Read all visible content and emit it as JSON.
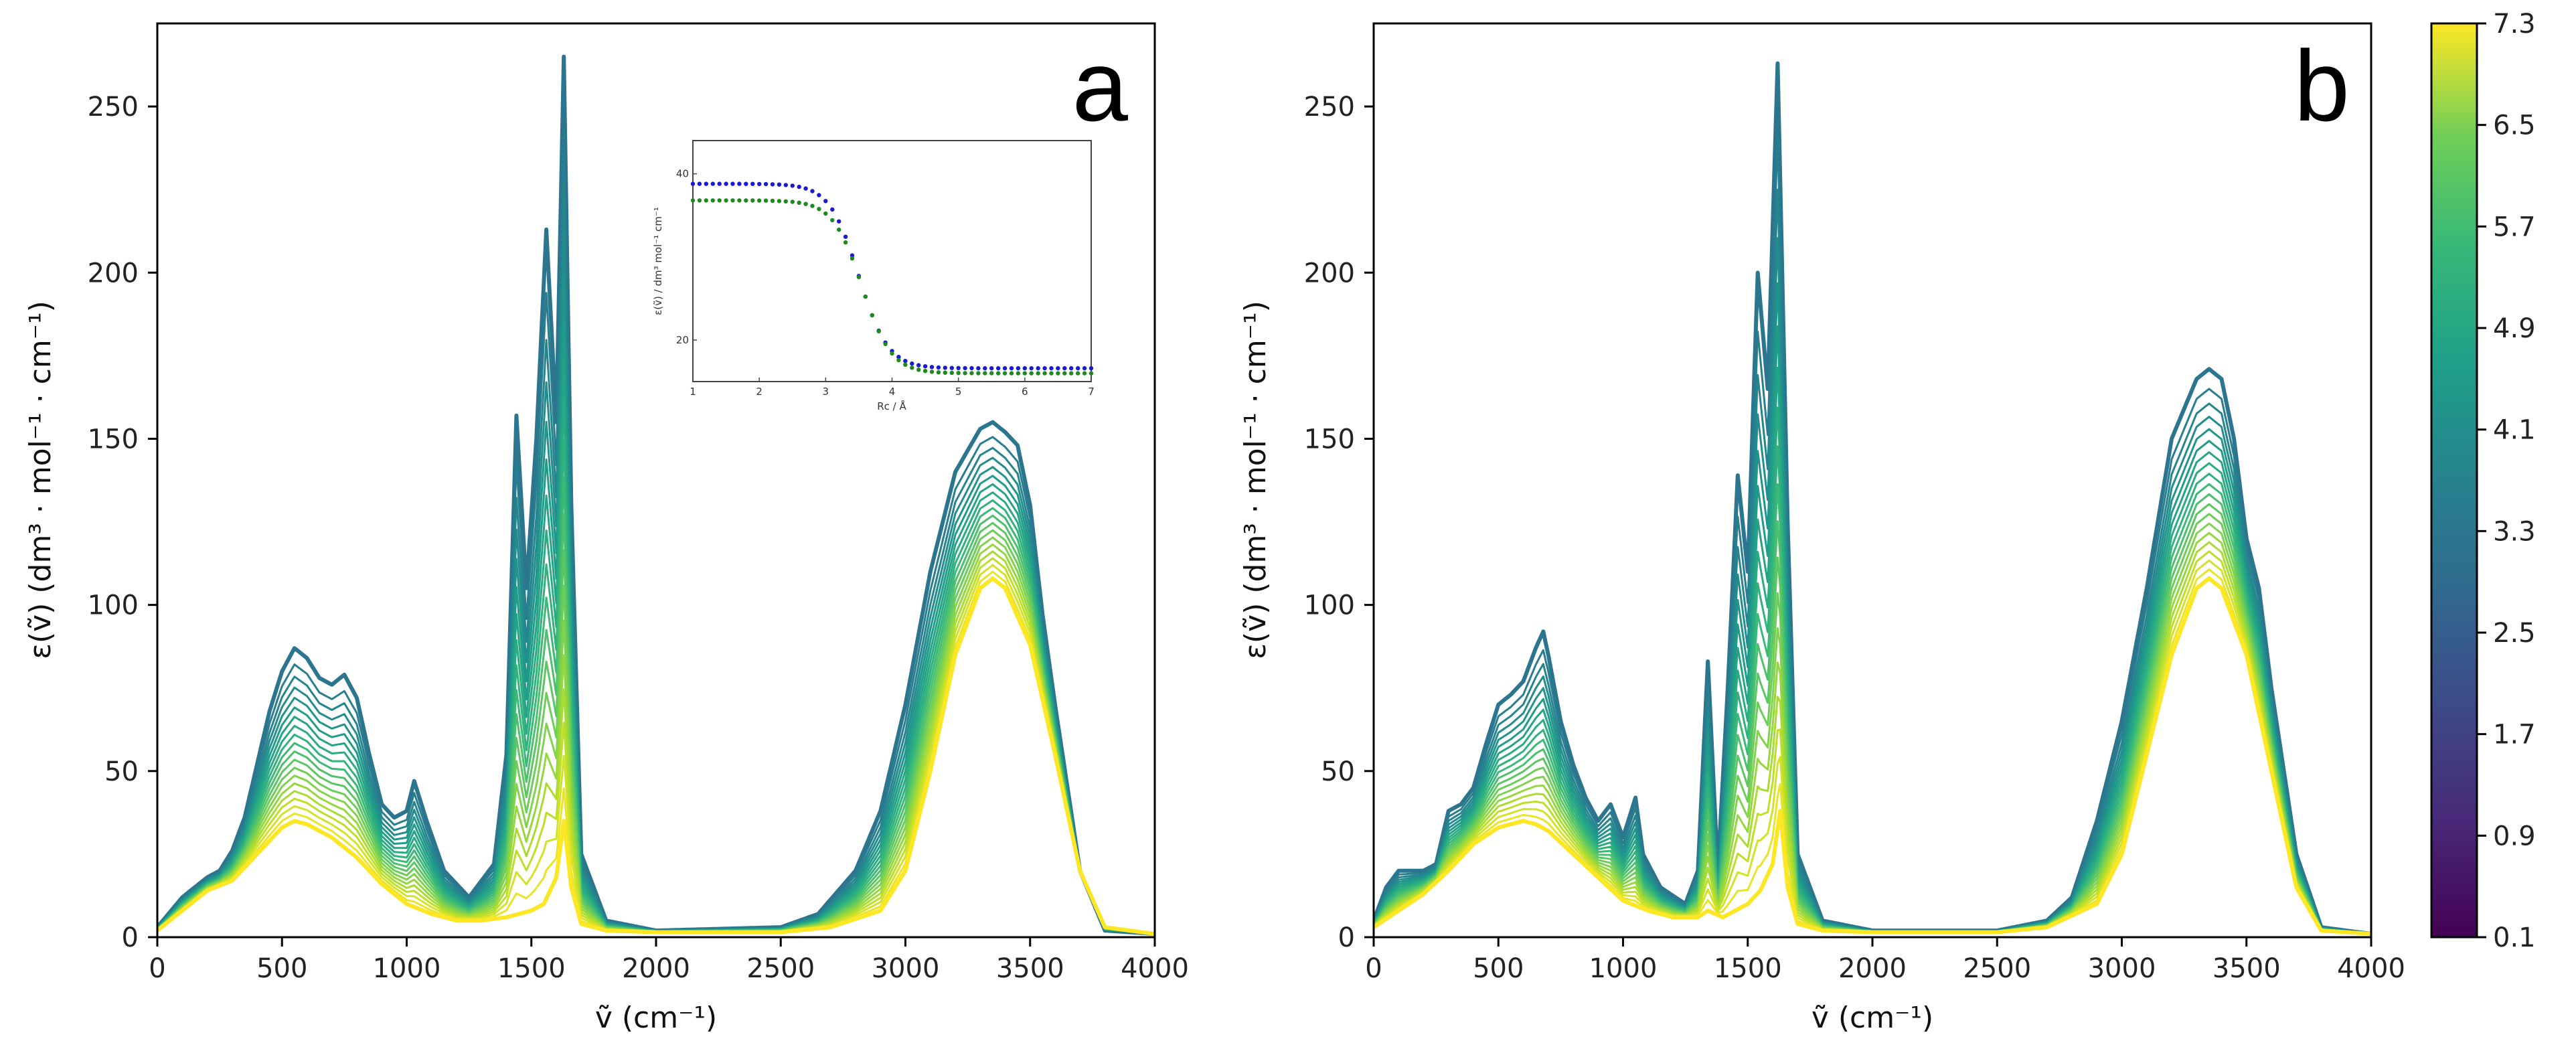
{
  "chart_data": [
    {
      "type": "line",
      "panel": "a",
      "title": "",
      "xlabel": "ṽ (cm⁻¹)",
      "ylabel": "ε(ṽ) (dm³ · mol⁻¹ · cm⁻¹)",
      "xlim": [
        0,
        4000
      ],
      "ylim": [
        0,
        275
      ],
      "xticks": [
        "0",
        "500",
        "1000",
        "1500",
        "2000",
        "2500",
        "3000",
        "3500",
        "4000"
      ],
      "yticks": [
        "0",
        "50",
        "100",
        "150",
        "200",
        "250"
      ],
      "series_count": 20,
      "color_param_range": [
        2.9,
        7.3
      ],
      "top_curve": {
        "x": [
          0,
          100,
          200,
          250,
          300,
          350,
          400,
          450,
          500,
          550,
          600,
          650,
          700,
          750,
          800,
          850,
          900,
          950,
          1000,
          1030,
          1080,
          1150,
          1250,
          1350,
          1400,
          1440,
          1480,
          1520,
          1560,
          1600,
          1630,
          1660,
          1700,
          1800,
          2000,
          2500,
          2650,
          2800,
          2900,
          3000,
          3100,
          3200,
          3300,
          3350,
          3400,
          3450,
          3500,
          3550,
          3600,
          3700,
          3800,
          4000
        ],
        "y": [
          3,
          12,
          18,
          20,
          26,
          36,
          52,
          68,
          80,
          87,
          84,
          78,
          76,
          79,
          72,
          55,
          40,
          36,
          38,
          47,
          35,
          20,
          12,
          22,
          55,
          157,
          105,
          150,
          213,
          155,
          265,
          130,
          25,
          5,
          2,
          3,
          7,
          20,
          38,
          70,
          110,
          140,
          153,
          155,
          152,
          148,
          130,
          97,
          70,
          20,
          2,
          1
        ]
      },
      "bottom_curve": {
        "x": [
          0,
          100,
          200,
          300,
          400,
          500,
          550,
          600,
          700,
          800,
          900,
          1000,
          1100,
          1200,
          1300,
          1400,
          1450,
          1500,
          1550,
          1600,
          1630,
          1660,
          1700,
          1800,
          2000,
          2500,
          2700,
          2900,
          3000,
          3100,
          3200,
          3300,
          3350,
          3400,
          3500,
          3600,
          3700,
          3800,
          4000
        ],
        "y": [
          2,
          8,
          14,
          17,
          25,
          33,
          35,
          34,
          30,
          24,
          16,
          10,
          7,
          5,
          5,
          6,
          7,
          8,
          10,
          18,
          35,
          15,
          4,
          2,
          1.5,
          1.5,
          3,
          8,
          20,
          50,
          85,
          105,
          108,
          105,
          88,
          55,
          20,
          3,
          1
        ]
      },
      "annotation": "a",
      "inset": {
        "xlabel": "Rᴄ / Å",
        "ylabel": "ε(ṽ) / dm³ mol⁻¹ cm⁻¹",
        "xlim": [
          1,
          7
        ],
        "ylim": [
          15,
          44
        ],
        "xticks": [
          "1",
          "2",
          "3",
          "4",
          "5",
          "6",
          "7"
        ],
        "yticks": [
          "20",
          "40"
        ],
        "series": [
          {
            "name": "blue",
            "color": "#1a1ad0",
            "plateau_high": 38.8,
            "plateau_low": 16.6,
            "midpoint": 3.5,
            "width": 0.22
          },
          {
            "name": "green",
            "color": "#1e8a1e",
            "plateau_high": 36.8,
            "plateau_low": 16.0,
            "midpoint": 3.55,
            "width": 0.22
          }
        ]
      }
    },
    {
      "type": "line",
      "panel": "b",
      "title": "",
      "xlabel": "ṽ (cm⁻¹)",
      "ylabel": "ε(ṽ) (dm³ · mol⁻¹ · cm⁻¹)",
      "xlim": [
        0,
        4000
      ],
      "ylim": [
        0,
        275
      ],
      "xticks": [
        "0",
        "500",
        "1000",
        "1500",
        "2000",
        "2500",
        "3000",
        "3500",
        "4000"
      ],
      "yticks": [
        "0",
        "50",
        "100",
        "150",
        "200",
        "250"
      ],
      "series_count": 20,
      "color_param_range": [
        2.9,
        7.3
      ],
      "top_curve": {
        "x": [
          0,
          50,
          100,
          200,
          250,
          300,
          350,
          400,
          450,
          500,
          550,
          600,
          650,
          680,
          700,
          750,
          800,
          850,
          900,
          950,
          1000,
          1050,
          1080,
          1150,
          1250,
          1300,
          1340,
          1380,
          1420,
          1460,
          1500,
          1540,
          1580,
          1620,
          1660,
          1700,
          1800,
          2000,
          2500,
          2700,
          2800,
          2900,
          3000,
          3100,
          3200,
          3300,
          3350,
          3400,
          3450,
          3500,
          3550,
          3600,
          3700,
          3800,
          4000
        ],
        "y": [
          5,
          15,
          20,
          20,
          22,
          38,
          40,
          45,
          58,
          70,
          73,
          77,
          87,
          92,
          85,
          65,
          52,
          42,
          35,
          40,
          30,
          42,
          25,
          15,
          10,
          20,
          83,
          20,
          75,
          139,
          110,
          200,
          165,
          263,
          125,
          25,
          5,
          2,
          2,
          5,
          12,
          35,
          65,
          105,
          150,
          168,
          171,
          168,
          150,
          120,
          105,
          75,
          25,
          3,
          1
        ]
      },
      "bottom_curve": {
        "x": [
          0,
          100,
          200,
          300,
          400,
          500,
          600,
          650,
          700,
          800,
          900,
          1000,
          1100,
          1200,
          1300,
          1340,
          1400,
          1450,
          1500,
          1550,
          1600,
          1630,
          1660,
          1700,
          1800,
          2000,
          2500,
          2700,
          2900,
          3000,
          3100,
          3200,
          3300,
          3350,
          3400,
          3500,
          3600,
          3700,
          3800,
          4000
        ],
        "y": [
          3,
          8,
          13,
          20,
          28,
          33,
          35,
          34,
          32,
          25,
          18,
          11,
          8,
          6,
          6,
          8,
          6,
          8,
          10,
          14,
          22,
          38,
          15,
          4,
          2,
          1.5,
          1.5,
          3,
          10,
          25,
          55,
          85,
          105,
          108,
          105,
          85,
          50,
          15,
          2,
          1
        ]
      },
      "annotation": "b"
    }
  ],
  "colorbar": {
    "ticks": [
      "0.1",
      "0.9",
      "1.7",
      "2.5",
      "3.3",
      "4.1",
      "4.9",
      "5.7",
      "6.5",
      "7.3"
    ],
    "range": [
      0.1,
      7.3
    ],
    "colormap": "viridis"
  }
}
